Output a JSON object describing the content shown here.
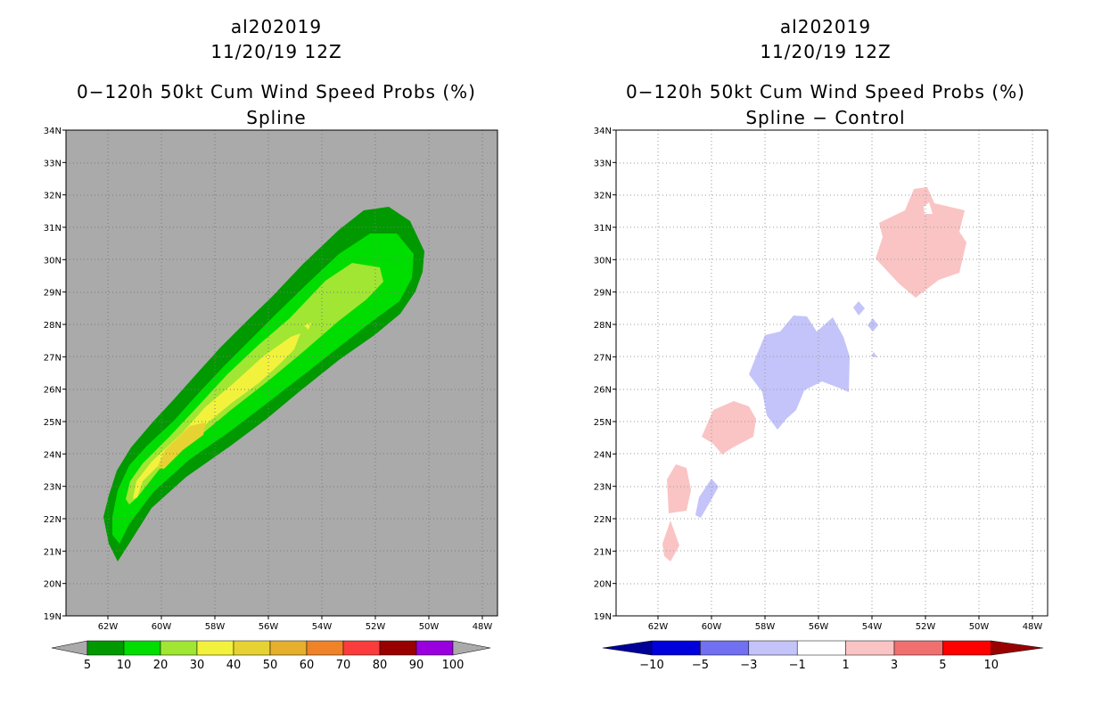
{
  "left_panel": {
    "storm_id": "al202019",
    "datetime": "11/20/19 12Z",
    "product": "0−120h 50kt Cum Wind Speed Probs (%)",
    "method": "Spline",
    "background_color": "#aaaaaa",
    "colorbar": {
      "labels": [
        "5",
        "10",
        "20",
        "30",
        "40",
        "50",
        "60",
        "70",
        "80",
        "90",
        "100"
      ],
      "colors": [
        "#009900",
        "#00dd00",
        "#a0e632",
        "#f2f23c",
        "#e6d232",
        "#e6af2d",
        "#f08228",
        "#fa3c3c",
        "#990000",
        "#9900dd"
      ],
      "end_color": "#aaaaaa"
    }
  },
  "right_panel": {
    "storm_id": "al202019",
    "datetime": "11/20/19 12Z",
    "product": "0−120h 50kt Cum Wind Speed Probs (%)",
    "method": "Spline − Control",
    "colorbar": {
      "labels": [
        "−10",
        "−5",
        "−3",
        "−1",
        "1",
        "3",
        "5",
        "10"
      ],
      "colors": [
        "#0000dd",
        "#7070f0",
        "#c4c4fa",
        "#ffffff",
        "#fac4c4",
        "#f07070",
        "#ff0000"
      ],
      "low_end_color": "#000099",
      "high_end_color": "#990000"
    }
  },
  "axes": {
    "lat_labels": [
      "34N",
      "33N",
      "32N",
      "31N",
      "30N",
      "29N",
      "28N",
      "27N",
      "26N",
      "25N",
      "24N",
      "23N",
      "22N",
      "21N",
      "20N",
      "19N"
    ],
    "lon_labels": [
      "62W",
      "60W",
      "58W",
      "56W",
      "54W",
      "52W",
      "50W",
      "48W"
    ]
  }
}
